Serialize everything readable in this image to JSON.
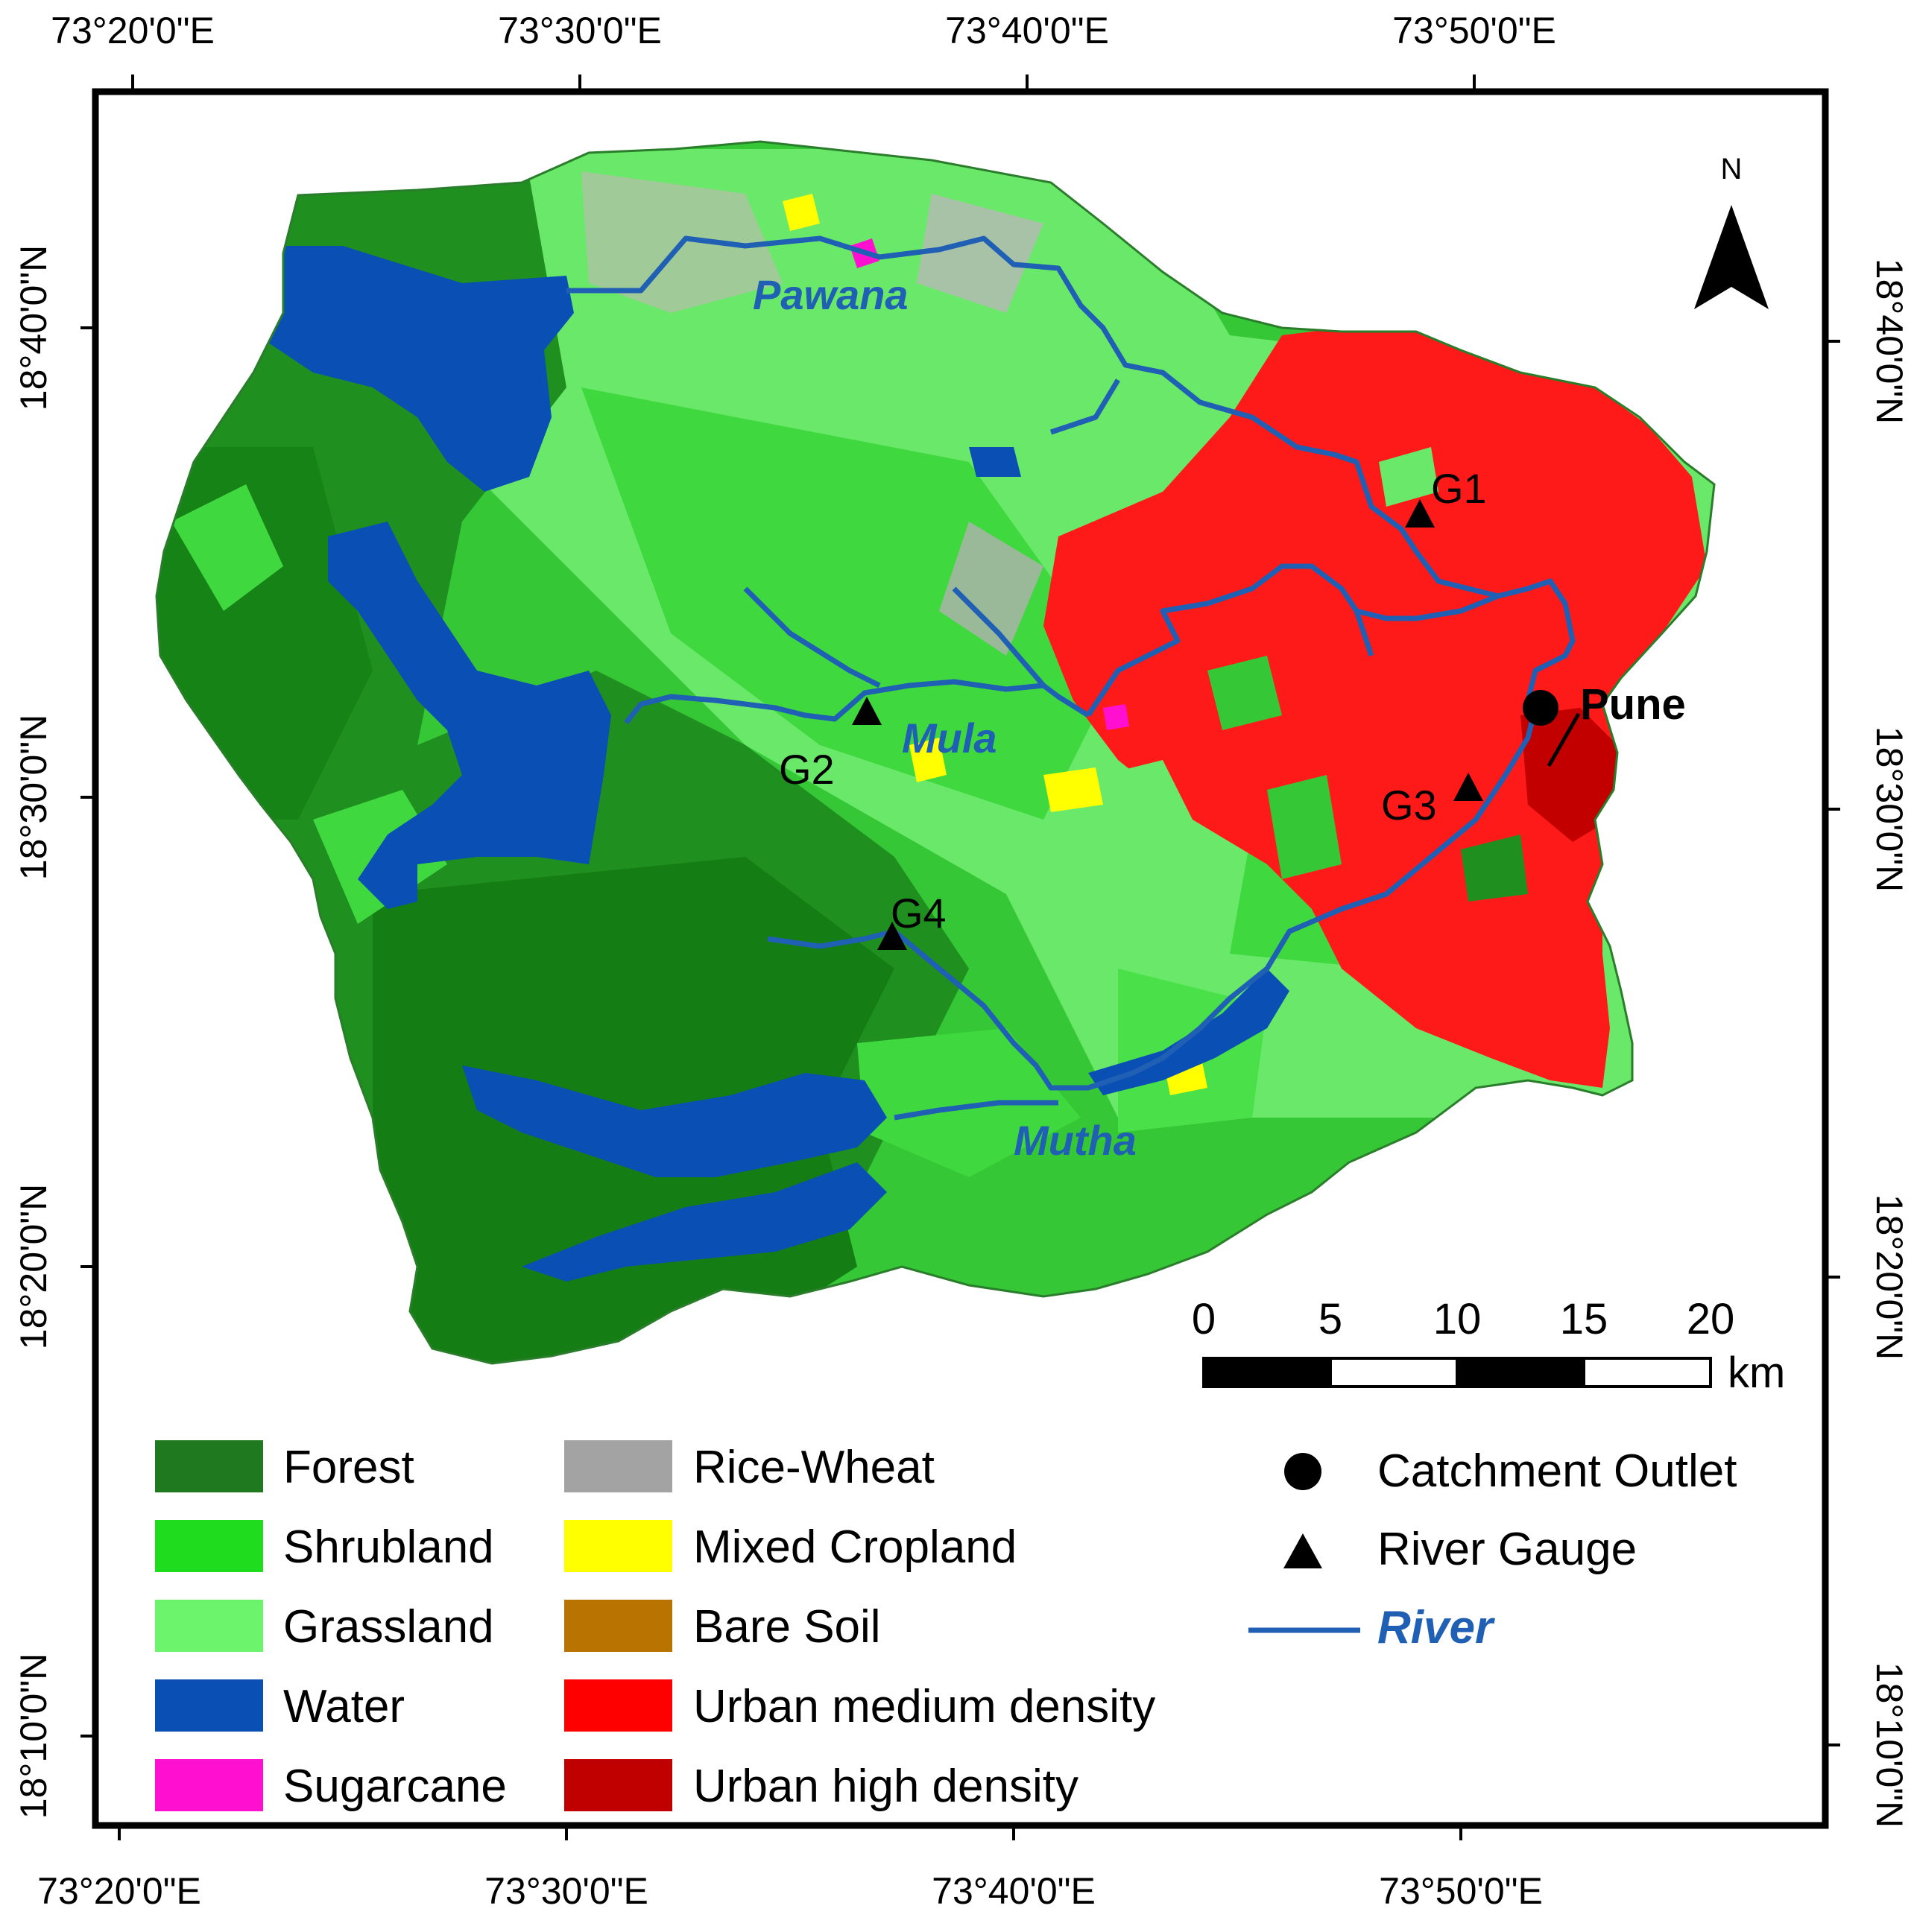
{
  "map": {
    "graticule": {
      "top_lon_labels": [
        "73°20'0\"E",
        "73°30'0\"E",
        "73°40'0\"E",
        "73°50'0\"E"
      ],
      "bottom_lon_labels": [
        "73°20'0\"E",
        "73°30'0\"E",
        "73°40'0\"E",
        "73°50'0\"E"
      ],
      "left_lat_labels": [
        "18°40'0\"N",
        "18°30'0\"N",
        "18°20'0\"N",
        "18°10'0\"N"
      ],
      "right_lat_labels": [
        "18°40'0\"N",
        "18°30'0\"N",
        "18°20'0\"N",
        "18°10'0\"N"
      ]
    },
    "north_arrow_label": "N",
    "rivers": [
      "Pawana",
      "Mula",
      "Mutha"
    ],
    "gauges": [
      "G1",
      "G2",
      "G3",
      "G4"
    ],
    "city": "Pune",
    "scale_bar": {
      "ticks": [
        "0",
        "5",
        "10",
        "15",
        "20"
      ],
      "unit": "km"
    },
    "legend": {
      "land_cover": [
        {
          "label": "Forest",
          "color": "#1f7a1f"
        },
        {
          "label": "Shrubland",
          "color": "#1fdc1f"
        },
        {
          "label": "Grassland",
          "color": "#6cf46c"
        },
        {
          "label": "Water",
          "color": "#0a4fb4"
        },
        {
          "label": "Sugarcane",
          "color": "#ff10d0"
        },
        {
          "label": "Rice-Wheat",
          "color": "#a3a3a3"
        },
        {
          "label": "Mixed Cropland",
          "color": "#ffff00"
        },
        {
          "label": "Bare Soil",
          "color": "#b87300"
        },
        {
          "label": "Urban medium density",
          "color": "#ff0000"
        },
        {
          "label": "Urban high density",
          "color": "#c00000"
        }
      ],
      "symbols": [
        {
          "label": "Catchment Outlet",
          "icon": "circle-icon"
        },
        {
          "label": "River Gauge",
          "icon": "triangle-icon"
        },
        {
          "label": "River",
          "icon": "river-line-icon",
          "color": "#1f5fb4"
        }
      ]
    }
  }
}
